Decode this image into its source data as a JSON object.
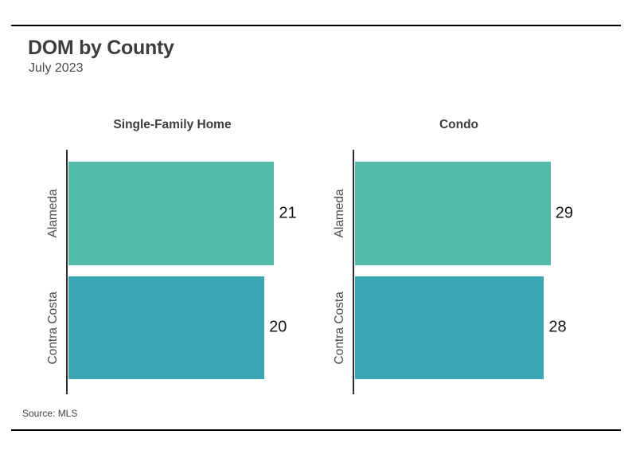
{
  "page": {
    "title": "DOM by County",
    "subtitle": "July 2023",
    "source": "Source: MLS"
  },
  "colors": {
    "bar_row_colors": [
      "#50BCA7",
      "#3BA7B4"
    ],
    "axis_line": "#2d2d2d",
    "rule": "#000000",
    "title_text": "#3d3d3d",
    "category_text": "#4d4d4d",
    "value_text": "#151515"
  },
  "chart_data": [
    {
      "type": "bar",
      "orientation": "horizontal",
      "title": "Single-Family Home",
      "categories": [
        "Alameda",
        "Contra Costa"
      ],
      "values": [
        21,
        20
      ],
      "xlim": [
        0,
        21.7
      ],
      "grid": false,
      "legend": "none",
      "value_labels_shown": true
    },
    {
      "type": "bar",
      "orientation": "horizontal",
      "title": "Condo",
      "categories": [
        "Alameda",
        "Contra Costa"
      ],
      "values": [
        29,
        28
      ],
      "xlim": [
        0,
        31.5
      ],
      "grid": false,
      "legend": "none",
      "value_labels_shown": true
    }
  ]
}
